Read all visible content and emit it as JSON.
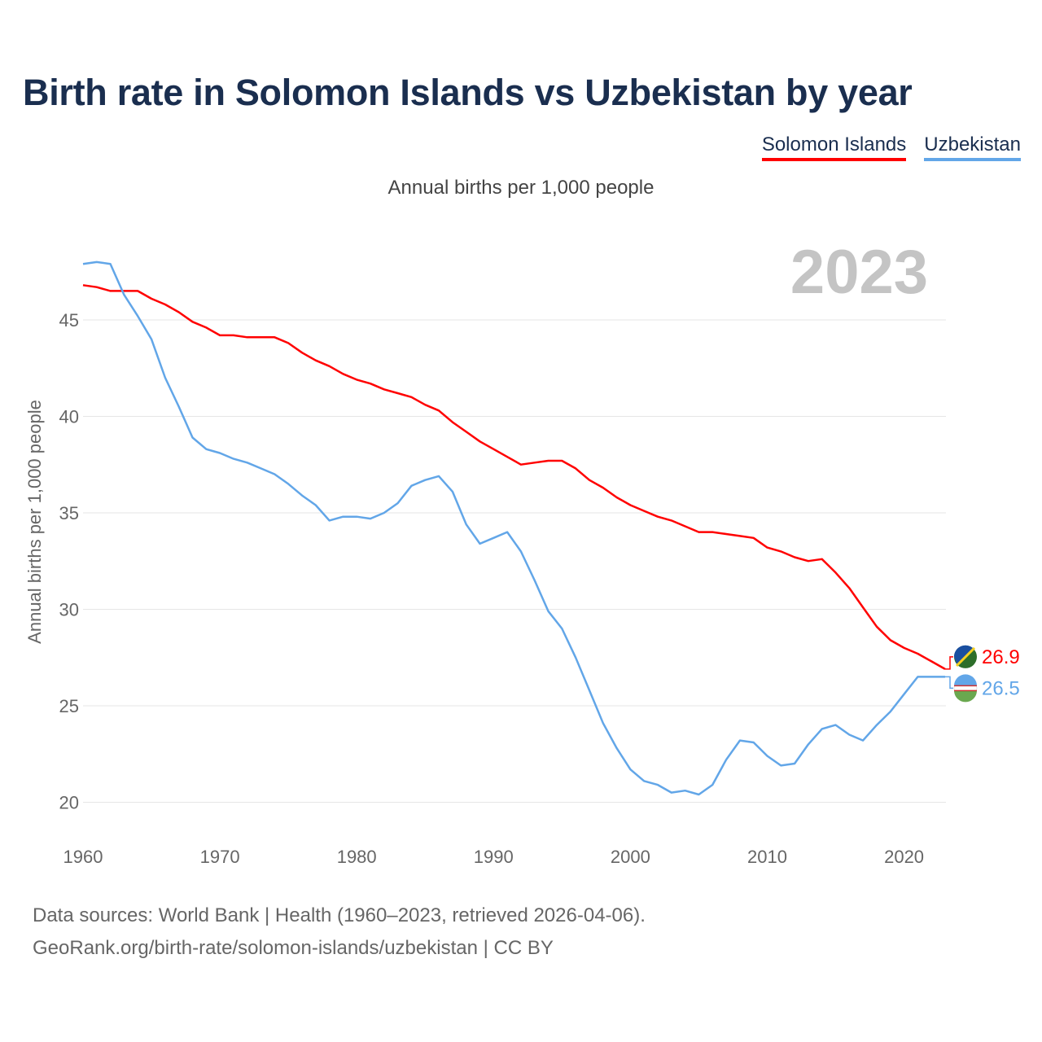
{
  "title": "Birth rate in Solomon Islands vs Uzbekistan by year",
  "subtitle": "Annual births per 1,000 people",
  "legend": [
    {
      "label": "Solomon Islands",
      "color": "#ff0000"
    },
    {
      "label": "Uzbekistan",
      "color": "#62a6e8"
    }
  ],
  "footer": {
    "source": "Data sources: World Bank | Health (1960–2023, retrieved 2026-04-06).",
    "credit": "GeoRank.org/birth-rate/solomon-islands/uzbekistan | CC BY"
  },
  "chart_data": {
    "type": "line",
    "title": "Birth rate in Solomon Islands vs Uzbekistan by year",
    "xlabel": "",
    "ylabel": "Annual births per 1,000 people",
    "xlim": [
      1960,
      2023
    ],
    "ylim": [
      18.5,
      48.5
    ],
    "x_ticks": [
      1960,
      1970,
      1980,
      1990,
      2000,
      2010,
      2020
    ],
    "y_ticks": [
      20,
      25,
      30,
      35,
      40,
      45
    ],
    "grid": true,
    "highlight_year": "2023",
    "x": [
      1960,
      1961,
      1962,
      1963,
      1964,
      1965,
      1966,
      1967,
      1968,
      1969,
      1970,
      1971,
      1972,
      1973,
      1974,
      1975,
      1976,
      1977,
      1978,
      1979,
      1980,
      1981,
      1982,
      1983,
      1984,
      1985,
      1986,
      1987,
      1988,
      1989,
      1990,
      1991,
      1992,
      1993,
      1994,
      1995,
      1996,
      1997,
      1998,
      1999,
      2000,
      2001,
      2002,
      2003,
      2004,
      2005,
      2006,
      2007,
      2008,
      2009,
      2010,
      2011,
      2012,
      2013,
      2014,
      2015,
      2016,
      2017,
      2018,
      2019,
      2020,
      2021,
      2022,
      2023
    ],
    "series": [
      {
        "name": "Solomon Islands",
        "color": "#ff0000",
        "end_label": "26.9",
        "values": [
          46.8,
          46.7,
          46.5,
          46.5,
          46.5,
          46.1,
          45.8,
          45.4,
          44.9,
          44.6,
          44.2,
          44.2,
          44.1,
          44.1,
          44.1,
          43.8,
          43.3,
          42.9,
          42.6,
          42.2,
          41.9,
          41.7,
          41.4,
          41.2,
          41.0,
          40.6,
          40.3,
          39.7,
          39.2,
          38.7,
          38.3,
          37.9,
          37.5,
          37.6,
          37.7,
          37.7,
          37.3,
          36.7,
          36.3,
          35.8,
          35.4,
          35.1,
          34.8,
          34.6,
          34.3,
          34.0,
          34.0,
          33.9,
          33.8,
          33.7,
          33.2,
          33.0,
          32.7,
          32.5,
          32.6,
          31.9,
          31.1,
          30.1,
          29.1,
          28.4,
          28.0,
          27.7,
          27.3,
          26.9
        ]
      },
      {
        "name": "Uzbekistan",
        "color": "#62a6e8",
        "end_label": "26.5",
        "values": [
          47.9,
          48.0,
          47.9,
          46.3,
          45.2,
          44.0,
          42.0,
          40.5,
          38.9,
          38.3,
          38.1,
          37.8,
          37.6,
          37.3,
          37.0,
          36.5,
          35.9,
          35.4,
          34.6,
          34.8,
          34.8,
          34.7,
          35.0,
          35.5,
          36.4,
          36.7,
          36.9,
          36.1,
          34.4,
          33.4,
          33.7,
          34.0,
          33.0,
          31.5,
          29.9,
          29.0,
          27.5,
          25.8,
          24.1,
          22.8,
          21.7,
          21.1,
          20.9,
          20.5,
          20.6,
          20.4,
          20.9,
          22.2,
          23.2,
          23.1,
          22.4,
          21.9,
          22.0,
          23.0,
          23.8,
          24.0,
          23.5,
          23.2,
          24.0,
          24.7,
          25.6,
          26.5,
          26.5,
          26.5
        ]
      }
    ]
  }
}
